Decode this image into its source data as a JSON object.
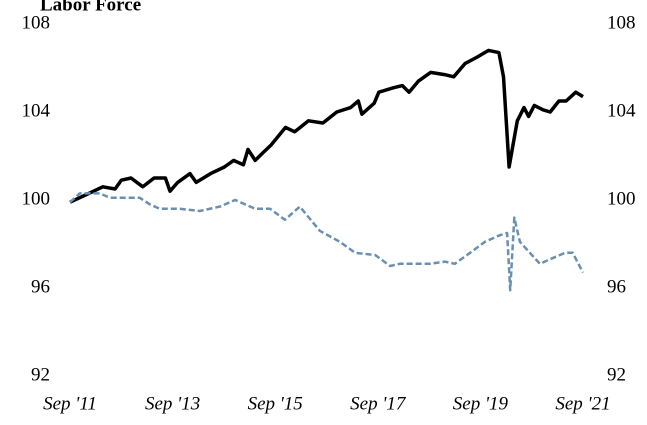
{
  "chart_data": {
    "type": "line",
    "title": "Labor Force",
    "xlim": [
      2011.67,
      2021.67
    ],
    "xticks": [
      {
        "value": 2011.67,
        "label": "Sep '11"
      },
      {
        "value": 2013.67,
        "label": "Sep '13"
      },
      {
        "value": 2015.67,
        "label": "Sep '15"
      },
      {
        "value": 2017.67,
        "label": "Sep '17"
      },
      {
        "value": 2019.67,
        "label": "Sep '19"
      },
      {
        "value": 2021.67,
        "label": "Sep '21"
      }
    ],
    "ylim": [
      92,
      108
    ],
    "yticks": [
      92,
      96,
      100,
      104,
      108
    ],
    "y2lim": [
      92,
      108
    ],
    "y2ticks": [
      92,
      96,
      100,
      104,
      108
    ],
    "grid": false,
    "series": [
      {
        "color": "#000000",
        "style": "solid",
        "x": [
          2011.67,
          2012.04,
          2012.31,
          2012.55,
          2012.67,
          2012.86,
          2013.09,
          2013.31,
          2013.53,
          2013.62,
          2013.77,
          2014.01,
          2014.13,
          2014.41,
          2014.68,
          2014.86,
          2015.05,
          2015.14,
          2015.28,
          2015.41,
          2015.59,
          2015.87,
          2016.05,
          2016.32,
          2016.6,
          2016.87,
          2017.14,
          2017.29,
          2017.36,
          2017.6,
          2017.69,
          2017.97,
          2018.15,
          2018.28,
          2018.46,
          2018.7,
          2018.97,
          2019.15,
          2019.37,
          2019.61,
          2019.83,
          2020.03,
          2020.12,
          2020.23,
          2020.39,
          2020.52,
          2020.61,
          2020.72,
          2020.89,
          2021.03,
          2021.2,
          2021.34,
          2021.53,
          2021.67
        ],
        "values": [
          99.9,
          100.3,
          100.6,
          100.5,
          100.9,
          101.0,
          100.6,
          101.0,
          101.0,
          100.4,
          100.8,
          101.2,
          100.8,
          101.2,
          101.5,
          101.8,
          101.6,
          102.3,
          101.8,
          102.1,
          102.5,
          103.3,
          103.1,
          103.6,
          103.5,
          104.0,
          104.2,
          104.5,
          103.9,
          104.4,
          104.9,
          105.1,
          105.2,
          104.9,
          105.4,
          105.8,
          105.7,
          105.6,
          106.2,
          106.5,
          106.8,
          106.7,
          105.6,
          101.5,
          103.6,
          104.2,
          103.8,
          104.3,
          104.1,
          104.0,
          104.5,
          104.5,
          104.9,
          104.7
        ]
      },
      {
        "color": "#6a8fb0",
        "style": "dashed",
        "x": [
          2011.67,
          2011.86,
          2012.25,
          2012.45,
          2013.03,
          2013.23,
          2013.42,
          2013.81,
          2014.2,
          2014.59,
          2014.89,
          2015.28,
          2015.57,
          2015.86,
          2016.15,
          2016.54,
          2016.93,
          2017.23,
          2017.62,
          2017.91,
          2018.1,
          2018.69,
          2018.98,
          2019.17,
          2019.47,
          2019.76,
          2020.05,
          2020.19,
          2020.25,
          2020.33,
          2020.44,
          2020.83,
          2021.12,
          2021.32,
          2021.47,
          2021.67
        ],
        "values": [
          99.9,
          100.3,
          100.3,
          100.1,
          100.1,
          99.8,
          99.6,
          99.6,
          99.5,
          99.7,
          100.0,
          99.6,
          99.6,
          99.1,
          99.7,
          98.6,
          98.1,
          97.6,
          97.5,
          97.0,
          97.1,
          97.1,
          97.2,
          97.1,
          97.6,
          98.1,
          98.4,
          98.5,
          95.9,
          99.2,
          98.1,
          97.1,
          97.4,
          97.6,
          97.6,
          96.7
        ]
      }
    ]
  }
}
